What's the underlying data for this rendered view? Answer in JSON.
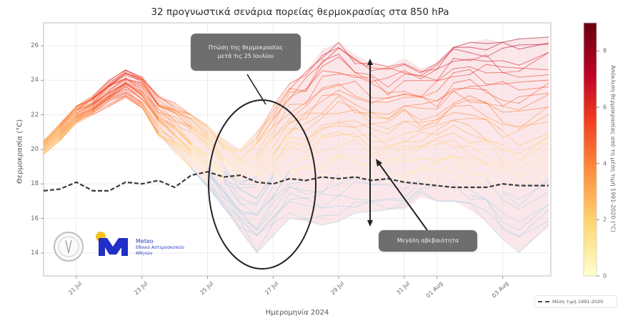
{
  "title": "32 προγνωστικά σενάρια πορείας θερμοκρασίας στα 850 hPa",
  "axes": {
    "ylabel": "Θερμοκρασία (°C)",
    "xlabel": "Ημερομηνία 2024",
    "yticks": [
      "26",
      "24",
      "22",
      "20",
      "18",
      "16",
      "14"
    ],
    "xticks": [
      "21 Jul",
      "23 Jul",
      "25 Jul",
      "27 Jul",
      "29 Jul",
      "31 Jul",
      "01 Aug",
      "03 Aug"
    ]
  },
  "colorbar": {
    "label": "Απόκλιση θερμοκρασίας από τη μέση τιμή 1991-2020 (°C)",
    "ticks": [
      "8",
      "6",
      "4",
      "2",
      "0"
    ],
    "colors": [
      "#67000d",
      "#a50f15",
      "#d7301f",
      "#f16913",
      "#fd8d3c",
      "#fdae6b",
      "#fed976",
      "#ffffcc"
    ]
  },
  "annotations": {
    "drop_callout": "Πτώση της θερμοκρασίας\nμετά τις 25 Ιουλίου",
    "uncertainty_callout": "Μεγάλη αβεβαιότητα"
  },
  "legend": {
    "mean_label": "Μέση τιμή 1991-2020"
  },
  "logos": {
    "meteo_name": "Meteo",
    "meteo_sub1": "Εθνικό Αστεροσκοπείο",
    "meteo_sub2": "Αθηνών"
  },
  "chart_data": {
    "type": "line",
    "title": "32 προγνωστικά σενάρια πορείας θερμοκρασίας στα 850 hPa",
    "xlabel": "Ημερομηνία 2024",
    "ylabel": "Θερμοκρασία (°C)",
    "ylim": [
      13,
      27.5
    ],
    "xlim": [
      "2024-07-20",
      "2024-08-04T12:00"
    ],
    "grid": true,
    "legend_position": "lower right (outside)",
    "x_days": [
      0,
      0.5,
      1,
      1.5,
      2,
      2.5,
      3,
      3.5,
      4,
      4.5,
      5,
      5.5,
      6,
      6.5,
      7,
      7.5,
      8,
      8.5,
      9,
      9.5,
      10,
      10.5,
      11,
      11.5,
      12,
      12.5,
      13,
      13.5,
      14,
      14.5,
      15.4
    ],
    "x_origin": "2024-07-20",
    "series": [
      {
        "name": "Μέση τιμή 1991-2020",
        "style": "dashed",
        "values": [
          17.6,
          17.7,
          18.1,
          17.6,
          17.6,
          18.1,
          18.0,
          18.2,
          17.8,
          18.5,
          18.7,
          18.4,
          18.5,
          18.1,
          18.0,
          18.3,
          18.2,
          18.4,
          18.3,
          18.4,
          18.2,
          18.3,
          18.1,
          18.0,
          17.9,
          17.8,
          17.8,
          17.8,
          18.0,
          17.9,
          17.9
        ]
      },
      {
        "name": "Ensemble max",
        "values": [
          20.5,
          21.5,
          22.5,
          23.1,
          24.0,
          24.6,
          24.2,
          23.2,
          22.7,
          22.0,
          21.4,
          20.6,
          20.0,
          21.0,
          22.5,
          23.8,
          24.5,
          25.8,
          26.2,
          25.5,
          25.0,
          24.8,
          25.3,
          24.7,
          25.0,
          25.9,
          26.2,
          26.4,
          26.2,
          26.4,
          26.5
        ]
      },
      {
        "name": "Ensemble high",
        "values": [
          20.3,
          21.3,
          22.3,
          22.9,
          23.7,
          24.3,
          23.9,
          22.8,
          22.2,
          21.4,
          20.7,
          19.8,
          19.4,
          20.3,
          21.6,
          22.8,
          23.6,
          24.3,
          24.2,
          24.0,
          24.4,
          24.5,
          24.0,
          24.3,
          24.5,
          25.0,
          25.4,
          25.2,
          24.8,
          25.0,
          24.8
        ]
      },
      {
        "name": "Ensemble median",
        "values": [
          20.1,
          21.0,
          22.0,
          22.6,
          23.3,
          23.9,
          23.4,
          22.3,
          21.5,
          20.8,
          19.8,
          19.0,
          18.6,
          19.2,
          20.0,
          21.0,
          21.5,
          22.0,
          22.3,
          21.7,
          22.0,
          21.6,
          22.2,
          21.8,
          22.0,
          22.4,
          22.5,
          22.2,
          22.6,
          22.0,
          22.3
        ]
      },
      {
        "name": "Ensemble low",
        "values": [
          19.9,
          20.8,
          21.8,
          22.3,
          22.9,
          23.5,
          22.9,
          21.5,
          20.5,
          19.6,
          18.6,
          17.6,
          16.6,
          16.0,
          16.8,
          18.2,
          19.0,
          19.3,
          19.6,
          19.5,
          19.8,
          19.3,
          19.6,
          19.4,
          19.8,
          19.6,
          20.0,
          20.2,
          20.4,
          20.5,
          20.7
        ]
      },
      {
        "name": "Ensemble min",
        "values": [
          19.7,
          20.5,
          21.5,
          22.0,
          22.5,
          23.0,
          22.4,
          20.8,
          19.8,
          18.9,
          17.8,
          16.6,
          15.2,
          14.0,
          15.0,
          16.0,
          15.8,
          15.6,
          15.8,
          16.3,
          16.4,
          16.5,
          16.5,
          17.2,
          17.0,
          17.0,
          16.5,
          15.8,
          14.8,
          14.0,
          15.5
        ]
      }
    ],
    "colorbar": {
      "label": "Απόκλιση θερμοκρασίας από τη μέση τιμή 1991-2020 (°C)",
      "range": [
        0,
        9
      ],
      "ticks": [
        0,
        2,
        4,
        6,
        8
      ],
      "cmap": "YlOrRd"
    },
    "annotations": [
      {
        "text": "Πτώση της θερμοκρασίας μετά τις 25 Ιουλίου",
        "type": "callout+ellipse",
        "x_range": [
          "2024-07-25",
          "2024-07-28"
        ]
      },
      {
        "text": "Μεγάλη αβεβαιότητα",
        "type": "callout+double-arrow",
        "x": "2024-07-30",
        "y_range": [
          15.5,
          25.5
        ]
      }
    ]
  }
}
